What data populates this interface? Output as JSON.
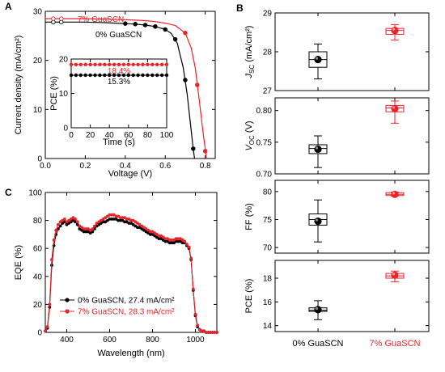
{
  "colors": {
    "control": "#000000",
    "gua": "#e8242a",
    "box_fill": "#ffffff"
  },
  "panels": {
    "a": "A",
    "b": "B",
    "c": "C"
  },
  "chart_data": [
    {
      "id": "A",
      "type": "line",
      "xlabel": "Voltage (V)",
      "ylabel": "Current density (mA/cm²)",
      "xlim": [
        0.0,
        0.85
      ],
      "ylim": [
        0,
        30
      ],
      "xticks": [
        "0.0",
        "0.2",
        "0.4",
        "0.6",
        "0.8"
      ],
      "yticks": [
        "0",
        "10",
        "20",
        "30"
      ],
      "annotations": [
        "7% GuaSCN",
        "0% GuaSCN"
      ],
      "series": [
        {
          "name": "0% GuaSCN",
          "color": "control",
          "x": [
            0.0,
            0.05,
            0.1,
            0.15,
            0.2,
            0.25,
            0.3,
            0.35,
            0.4,
            0.45,
            0.5,
            0.55,
            0.6,
            0.63,
            0.66,
            0.69,
            0.71,
            0.725,
            0.74,
            0.75
          ],
          "y": [
            27.8,
            27.8,
            27.8,
            27.8,
            27.8,
            27.75,
            27.7,
            27.6,
            27.5,
            27.4,
            27.2,
            26.9,
            26.3,
            25.5,
            23.5,
            18.5,
            13.0,
            7.5,
            2.0,
            -1.0
          ],
          "markers": [
            [
              0.04,
              27.8
            ],
            [
              0.08,
              27.8
            ],
            [
              0.4,
              27.5
            ],
            [
              0.45,
              27.4
            ],
            [
              0.5,
              27.2
            ],
            [
              0.55,
              26.9
            ],
            [
              0.6,
              26.3
            ],
            [
              0.65,
              24.3
            ],
            [
              0.7,
              16.0
            ],
            [
              0.74,
              2.0
            ]
          ]
        },
        {
          "name": "7% GuaSCN",
          "color": "gua",
          "x": [
            0.0,
            0.05,
            0.1,
            0.15,
            0.2,
            0.25,
            0.3,
            0.35,
            0.4,
            0.45,
            0.5,
            0.55,
            0.6,
            0.65,
            0.7,
            0.73,
            0.75,
            0.77,
            0.79,
            0.81
          ],
          "y": [
            28.5,
            28.5,
            28.5,
            28.5,
            28.5,
            28.45,
            28.4,
            28.35,
            28.3,
            28.2,
            28.1,
            27.9,
            27.6,
            27.1,
            25.6,
            22.5,
            18.5,
            12.0,
            5.0,
            -1.0
          ],
          "markers": [
            [
              0.04,
              28.5
            ],
            [
              0.08,
              28.5
            ],
            [
              0.7,
              25.6
            ],
            [
              0.76,
              15.0
            ],
            [
              0.8,
              1.5
            ]
          ]
        }
      ]
    },
    {
      "id": "A-inset",
      "type": "line",
      "xlabel": "Time (s)",
      "ylabel": "PCE (%)",
      "xlim": [
        0,
        100
      ],
      "ylim": [
        0,
        20
      ],
      "xticks": [
        "0",
        "20",
        "40",
        "60",
        "80",
        "100"
      ],
      "yticks": [
        "0",
        "10",
        "20"
      ],
      "series": [
        {
          "name": "7% GuaSCN",
          "color": "gua",
          "label": "18.4%",
          "x": [
            0,
            5,
            10,
            15,
            20,
            25,
            30,
            35,
            40,
            45,
            50,
            55,
            60,
            65,
            70,
            75,
            80,
            85,
            90,
            95,
            100
          ],
          "y": [
            18.4,
            18.4,
            18.4,
            18.4,
            18.4,
            18.4,
            18.4,
            18.4,
            18.4,
            18.4,
            18.4,
            18.4,
            18.4,
            18.4,
            18.4,
            18.4,
            18.4,
            18.4,
            18.4,
            18.4,
            18.4
          ]
        },
        {
          "name": "0% GuaSCN",
          "color": "control",
          "label": "15.3%",
          "x": [
            0,
            5,
            10,
            15,
            20,
            25,
            30,
            35,
            40,
            45,
            50,
            55,
            60,
            65,
            70,
            75,
            80,
            85,
            90,
            95,
            100
          ],
          "y": [
            15.3,
            15.3,
            15.3,
            15.3,
            15.3,
            15.3,
            15.3,
            15.3,
            15.3,
            15.3,
            15.3,
            15.3,
            15.3,
            15.3,
            15.3,
            15.3,
            15.3,
            15.3,
            15.3,
            15.3,
            15.3
          ]
        }
      ]
    },
    {
      "id": "B",
      "type": "box",
      "categories": [
        "0% GuaSCN",
        "7% GuaSCN"
      ],
      "subplots": [
        {
          "ylabel": "J_SC (mA/cm²)",
          "ylabel_main": "J",
          "ylabel_sub": "SC",
          "ylabel_rest": " (mA/cm²)",
          "ylim": [
            27,
            29
          ],
          "yticks": [
            "27",
            "28",
            "29"
          ],
          "boxes": [
            {
              "min": 27.3,
              "q1": 27.6,
              "median": 27.8,
              "q3": 28.0,
              "max": 28.2,
              "mean": 27.8
            },
            {
              "min": 28.3,
              "q1": 28.45,
              "median": 28.55,
              "q3": 28.6,
              "max": 28.7,
              "mean": 28.55
            }
          ]
        },
        {
          "ylabel": "V_OC (V)",
          "ylabel_main": "V",
          "ylabel_sub": "OC",
          "ylabel_rest": " (V)",
          "ylim": [
            0.7,
            0.82
          ],
          "yticks": [
            "0.70",
            "0.75",
            "0.80"
          ],
          "boxes": [
            {
              "min": 0.71,
              "q1": 0.732,
              "median": 0.74,
              "q3": 0.746,
              "max": 0.76,
              "mean": 0.739
            },
            {
              "min": 0.78,
              "q1": 0.798,
              "median": 0.804,
              "q3": 0.808,
              "max": 0.815,
              "mean": 0.803
            }
          ]
        },
        {
          "ylabel": "FF (%)",
          "ylabel_main": "FF (%)",
          "ylabel_sub": "",
          "ylabel_rest": "",
          "ylim": [
            69,
            82
          ],
          "yticks": [
            "70",
            "75",
            "80"
          ],
          "boxes": [
            {
              "min": 71.0,
              "q1": 74.0,
              "median": 75.0,
              "q3": 76.0,
              "max": 78.5,
              "mean": 74.7
            },
            {
              "min": 79.2,
              "q1": 79.3,
              "median": 79.5,
              "q3": 79.8,
              "max": 79.9,
              "mean": 79.5
            }
          ]
        },
        {
          "ylabel": "PCE (%)",
          "ylabel_main": "PCE (%)",
          "ylabel_sub": "",
          "ylabel_rest": "",
          "ylim": [
            13.5,
            19.5
          ],
          "yticks": [
            "14",
            "16",
            "18"
          ],
          "boxes": [
            {
              "min": 14.5,
              "q1": 15.2,
              "median": 15.3,
              "q3": 15.5,
              "max": 16.1,
              "mean": 15.35
            },
            {
              "min": 17.7,
              "q1": 18.0,
              "median": 18.2,
              "q3": 18.4,
              "max": 18.6,
              "mean": 18.25
            }
          ]
        }
      ]
    },
    {
      "id": "C",
      "type": "line",
      "xlabel": "Wavelength (nm)",
      "ylabel": "EQE (%)",
      "xlim": [
        300,
        1100
      ],
      "ylim": [
        0,
        100
      ],
      "xticks": [
        "400",
        "600",
        "800",
        "1000"
      ],
      "yticks": [
        "0",
        "20",
        "40",
        "60",
        "80",
        "100"
      ],
      "series": [
        {
          "name": "0% GuaSCN, 27.4 mA/cm²",
          "color": "control",
          "x": [
            300,
            310,
            320,
            330,
            340,
            350,
            360,
            370,
            380,
            390,
            400,
            410,
            420,
            430,
            440,
            450,
            460,
            470,
            480,
            490,
            500,
            510,
            520,
            530,
            540,
            550,
            560,
            570,
            580,
            590,
            600,
            610,
            620,
            630,
            640,
            650,
            660,
            670,
            680,
            690,
            700,
            710,
            720,
            730,
            740,
            750,
            760,
            770,
            780,
            790,
            800,
            810,
            820,
            830,
            840,
            850,
            860,
            870,
            880,
            890,
            900,
            910,
            920,
            930,
            940,
            950,
            960,
            970,
            980,
            990,
            1000,
            1010,
            1020,
            1030,
            1040,
            1050,
            1060,
            1070,
            1080,
            1090,
            1100
          ],
          "y": [
            1,
            3,
            18,
            48,
            62,
            70,
            74,
            76,
            78,
            79,
            77,
            78,
            79,
            80,
            79,
            77,
            74,
            73,
            72,
            72,
            72,
            71,
            72,
            74,
            76,
            77,
            78,
            79,
            79,
            80,
            81,
            81,
            81,
            81,
            80,
            80,
            80,
            79,
            79,
            78,
            78,
            77,
            76,
            75,
            75,
            74,
            73,
            72,
            71,
            70,
            70,
            69,
            68,
            67,
            67,
            66,
            65,
            65,
            64,
            64,
            64,
            65,
            65,
            65,
            64,
            64,
            62,
            60,
            52,
            30,
            12,
            4,
            2,
            1,
            1,
            0,
            0,
            0,
            0,
            0,
            0
          ]
        },
        {
          "name": "7% GuaSCN, 28.3 mA/cm²",
          "color": "gua",
          "x": [
            300,
            310,
            320,
            330,
            340,
            350,
            360,
            370,
            380,
            390,
            400,
            410,
            420,
            430,
            440,
            450,
            460,
            470,
            480,
            490,
            500,
            510,
            520,
            530,
            540,
            550,
            560,
            570,
            580,
            590,
            600,
            610,
            620,
            630,
            640,
            650,
            660,
            670,
            680,
            690,
            700,
            710,
            720,
            730,
            740,
            750,
            760,
            770,
            780,
            790,
            800,
            810,
            820,
            830,
            840,
            850,
            860,
            870,
            880,
            890,
            900,
            910,
            920,
            930,
            940,
            950,
            960,
            970,
            980,
            990,
            1000,
            1010,
            1020,
            1030,
            1040,
            1050,
            1060,
            1070,
            1080,
            1090,
            1100
          ],
          "y": [
            1,
            4,
            20,
            52,
            66,
            73,
            77,
            79,
            80,
            81,
            79,
            80,
            81,
            82,
            81,
            79,
            76,
            75,
            74,
            74,
            74,
            73,
            74,
            76,
            78,
            79,
            80,
            81,
            82,
            83,
            84,
            84,
            84,
            83,
            83,
            82,
            82,
            82,
            81,
            81,
            80,
            80,
            79,
            78,
            77,
            76,
            75,
            74,
            73,
            72,
            72,
            71,
            70,
            69,
            69,
            68,
            67,
            67,
            66,
            66,
            66,
            67,
            67,
            67,
            66,
            65,
            63,
            61,
            53,
            31,
            13,
            5,
            2,
            1,
            1,
            0,
            0,
            0,
            0,
            0,
            0
          ]
        }
      ]
    }
  ]
}
